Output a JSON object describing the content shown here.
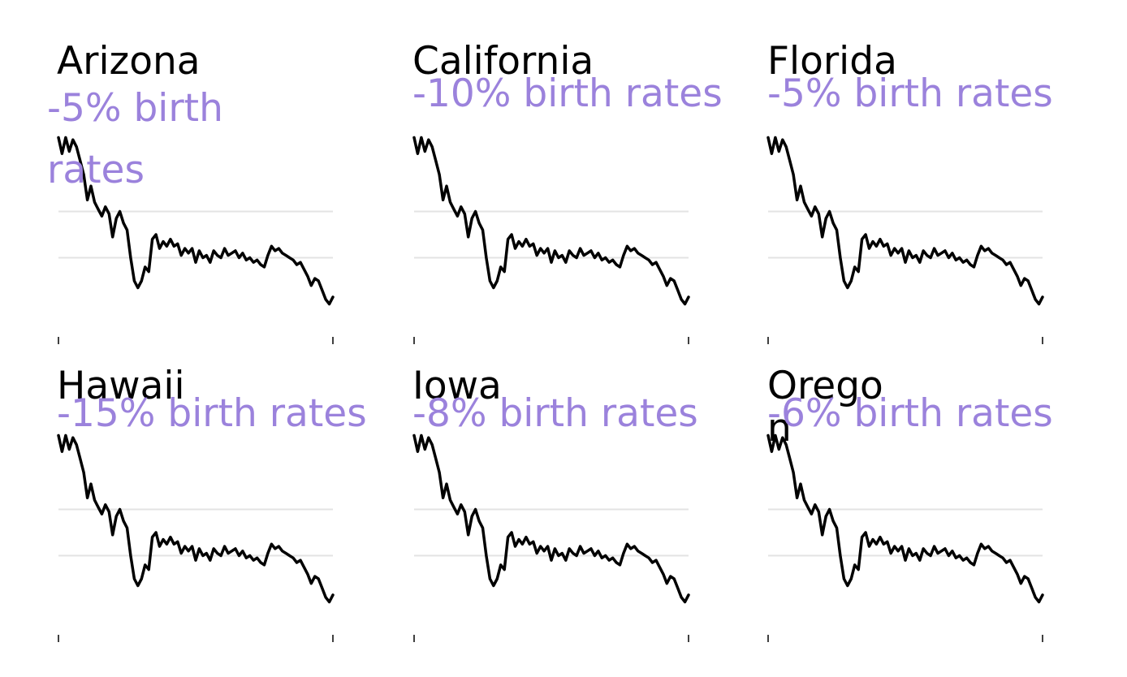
{
  "chart_data": {
    "type": "line",
    "layout": "small-multiples",
    "grid": true,
    "line_color": "#000000",
    "annotation_color": "#9b82dc",
    "panels": [
      {
        "title": "Arizona",
        "change": "-5% birth rates"
      },
      {
        "title": "California",
        "change": "-10% birth rates"
      },
      {
        "title": "Florida",
        "change": "-5% birth rates"
      },
      {
        "title": "Hawaii",
        "change": "-15% birth rates"
      },
      {
        "title": "Iowa",
        "change": "-8% birth rates"
      },
      {
        "title": "Oregon",
        "change": "-6% birth rates"
      }
    ],
    "series_values": [
      2.6,
      2.25,
      2.6,
      2.3,
      2.55,
      2.4,
      2.1,
      1.8,
      1.25,
      1.55,
      1.2,
      1.05,
      0.9,
      1.1,
      0.95,
      0.45,
      0.85,
      1.0,
      0.75,
      0.6,
      0.0,
      -0.5,
      -0.65,
      -0.5,
      -0.2,
      -0.3,
      0.4,
      0.5,
      0.2,
      0.35,
      0.25,
      0.4,
      0.25,
      0.3,
      0.05,
      0.2,
      0.1,
      0.2,
      -0.1,
      0.15,
      0.0,
      0.05,
      -0.1,
      0.15,
      0.05,
      0.0,
      0.2,
      0.05,
      0.1,
      0.15,
      0.0,
      0.1,
      -0.05,
      0.0,
      -0.1,
      -0.05,
      -0.15,
      -0.2,
      0.05,
      0.25,
      0.15,
      0.2,
      0.1,
      0.05,
      0.0,
      -0.05,
      -0.15,
      -0.1,
      -0.25,
      -0.4,
      -0.6,
      -0.45,
      -0.5,
      -0.7,
      -0.9,
      -1.0,
      -0.85
    ],
    "gridlines": [
      1.0,
      0.0
    ],
    "ylim": [
      -1.15,
      2.8
    ]
  }
}
